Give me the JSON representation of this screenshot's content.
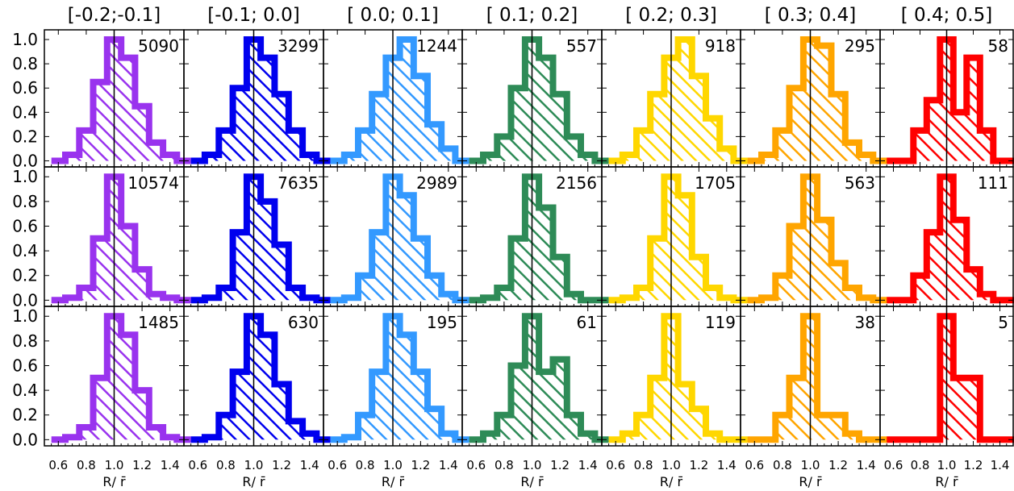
{
  "chart_data": {
    "type": "histogram-grid",
    "x_range": [
      0.5,
      1.5
    ],
    "y_range": [
      -0.05,
      1.08
    ],
    "bin_edges": [
      0.55,
      0.65,
      0.75,
      0.85,
      0.95,
      1.05,
      1.15,
      1.25,
      1.35,
      1.45,
      1.55
    ],
    "reference_line_x": 1.0,
    "x_ticks": [
      0.6,
      0.8,
      1.0,
      1.2,
      1.4
    ],
    "x_tick_labels": [
      "0.6",
      "0.8",
      "1.0",
      "1.2",
      "1.4"
    ],
    "y_ticks": [
      0.0,
      0.2,
      0.4,
      0.6,
      0.8,
      1.0
    ],
    "y_tick_labels": [
      "0.0",
      "0.2",
      "0.4",
      "0.6",
      "0.8",
      "1.0"
    ],
    "xlabel": "R/ r̄",
    "columns": [
      {
        "label": "[-0.2;-0.1]",
        "color": "#9933ee"
      },
      {
        "label": "[-0.1; 0.0]",
        "color": "#0000ee"
      },
      {
        "label": "[ 0.0; 0.1]",
        "color": "#3399ff"
      },
      {
        "label": "[ 0.1; 0.2]",
        "color": "#2e8b57"
      },
      {
        "label": "[ 0.2; 0.3]",
        "color": "#ffd700"
      },
      {
        "label": "[ 0.3; 0.4]",
        "color": "#ffa500"
      },
      {
        "label": "[ 0.4; 0.5]",
        "color": "#ff0000"
      }
    ],
    "panels": [
      [
        {
          "count": "5090",
          "values": [
            0.0,
            0.05,
            0.25,
            0.65,
            1.0,
            0.85,
            0.45,
            0.15,
            0.05,
            0.0
          ]
        },
        {
          "count": "3299",
          "values": [
            0.0,
            0.05,
            0.25,
            0.6,
            1.0,
            0.85,
            0.55,
            0.25,
            0.05,
            0.0
          ]
        },
        {
          "count": "1244",
          "values": [
            0.0,
            0.05,
            0.25,
            0.55,
            0.85,
            1.0,
            0.7,
            0.3,
            0.1,
            0.0
          ]
        },
        {
          "count": "557",
          "values": [
            0.0,
            0.05,
            0.2,
            0.6,
            1.0,
            0.85,
            0.55,
            0.2,
            0.05,
            0.0
          ]
        },
        {
          "count": "918",
          "values": [
            0.0,
            0.05,
            0.25,
            0.55,
            0.85,
            1.0,
            0.7,
            0.35,
            0.1,
            0.0
          ]
        },
        {
          "count": "295",
          "values": [
            0.0,
            0.05,
            0.25,
            0.6,
            1.0,
            0.95,
            0.55,
            0.15,
            0.05,
            0.0
          ]
        },
        {
          "count": "58",
          "values": [
            0.0,
            0.0,
            0.25,
            0.5,
            1.0,
            0.4,
            0.85,
            0.25,
            0.0,
            0.0
          ]
        }
      ],
      [
        {
          "count": "10574",
          "values": [
            0.0,
            0.02,
            0.1,
            0.5,
            1.0,
            0.6,
            0.25,
            0.05,
            0.02,
            0.0
          ]
        },
        {
          "count": "7635",
          "values": [
            0.0,
            0.02,
            0.1,
            0.55,
            1.0,
            0.8,
            0.45,
            0.1,
            0.02,
            0.0
          ]
        },
        {
          "count": "2989",
          "values": [
            0.0,
            0.02,
            0.2,
            0.55,
            1.0,
            0.85,
            0.5,
            0.2,
            0.05,
            0.0
          ]
        },
        {
          "count": "2156",
          "values": [
            0.0,
            0.02,
            0.1,
            0.5,
            1.0,
            0.75,
            0.35,
            0.05,
            0.0,
            0.0
          ]
        },
        {
          "count": "1705",
          "values": [
            0.0,
            0.02,
            0.1,
            0.5,
            1.0,
            0.85,
            0.35,
            0.1,
            0.02,
            0.0
          ]
        },
        {
          "count": "563",
          "values": [
            0.0,
            0.02,
            0.2,
            0.6,
            1.0,
            0.65,
            0.3,
            0.1,
            0.02,
            0.0
          ]
        },
        {
          "count": "111",
          "values": [
            0.0,
            0.0,
            0.2,
            0.55,
            1.0,
            0.65,
            0.25,
            0.05,
            0.0,
            0.0
          ]
        }
      ],
      [
        {
          "count": "1485",
          "values": [
            0.0,
            0.02,
            0.1,
            0.5,
            1.0,
            0.85,
            0.4,
            0.1,
            0.02,
            0.0
          ]
        },
        {
          "count": "630",
          "values": [
            0.0,
            0.02,
            0.2,
            0.55,
            1.0,
            0.85,
            0.45,
            0.15,
            0.05,
            0.0
          ]
        },
        {
          "count": "195",
          "values": [
            0.0,
            0.02,
            0.2,
            0.55,
            1.0,
            0.85,
            0.55,
            0.25,
            0.05,
            0.0
          ]
        },
        {
          "count": "61",
          "values": [
            0.0,
            0.05,
            0.2,
            0.6,
            1.0,
            0.55,
            0.65,
            0.2,
            0.05,
            0.0
          ]
        },
        {
          "count": "119",
          "values": [
            0.0,
            0.05,
            0.2,
            0.5,
            1.0,
            0.45,
            0.25,
            0.05,
            0.0,
            0.0
          ]
        },
        {
          "count": "38",
          "values": [
            0.0,
            0.0,
            0.2,
            0.5,
            1.0,
            0.2,
            0.2,
            0.05,
            0.0,
            0.0
          ]
        },
        {
          "count": "5",
          "values": [
            0.0,
            0.0,
            0.0,
            0.0,
            1.0,
            0.5,
            0.5,
            0.0,
            0.0,
            0.0
          ]
        }
      ]
    ]
  }
}
